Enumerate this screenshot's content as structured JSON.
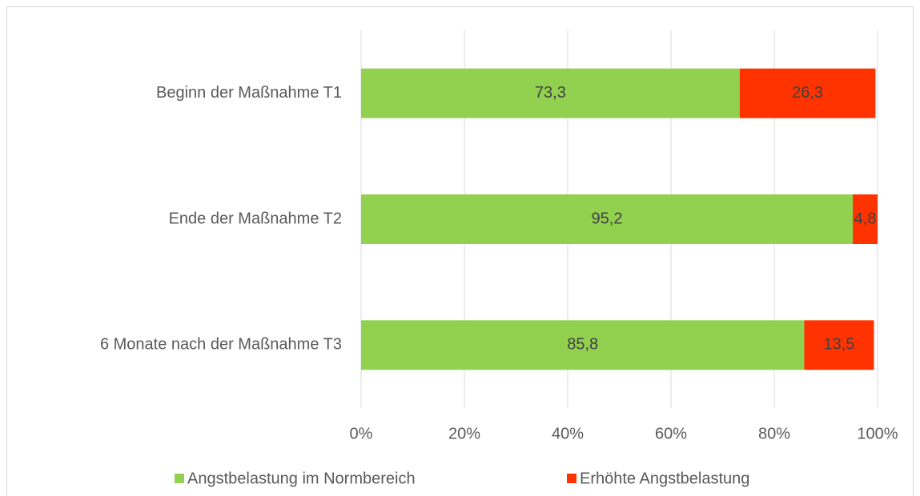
{
  "chart_data": {
    "type": "stacked_bar",
    "orientation": "horizontal",
    "categories": [
      "Beginn der Maßnahme T1",
      "Ende der Maßnahme T2",
      "6 Monate nach der Maßnahme T3"
    ],
    "series": [
      {
        "name": "Angstbelastung im Normbereich",
        "color": "#92d050",
        "values": [
          73.3,
          95.2,
          85.8
        ],
        "value_labels": [
          "73,3",
          "95,2",
          "85,8"
        ]
      },
      {
        "name": "Erhöhte Angstbelastung",
        "color": "#ff3300",
        "values": [
          26.3,
          4.8,
          13.5
        ],
        "value_labels": [
          "26,3",
          "4,8",
          "13,5"
        ]
      }
    ],
    "xlim": [
      0,
      100
    ],
    "xticks": [
      {
        "value": 0,
        "label": "0%"
      },
      {
        "value": 20,
        "label": "20%"
      },
      {
        "value": 40,
        "label": "40%"
      },
      {
        "value": 60,
        "label": "60%"
      },
      {
        "value": 80,
        "label": "80%"
      },
      {
        "value": 100,
        "label": "100%"
      }
    ],
    "grid": true,
    "legend": "bottom"
  }
}
